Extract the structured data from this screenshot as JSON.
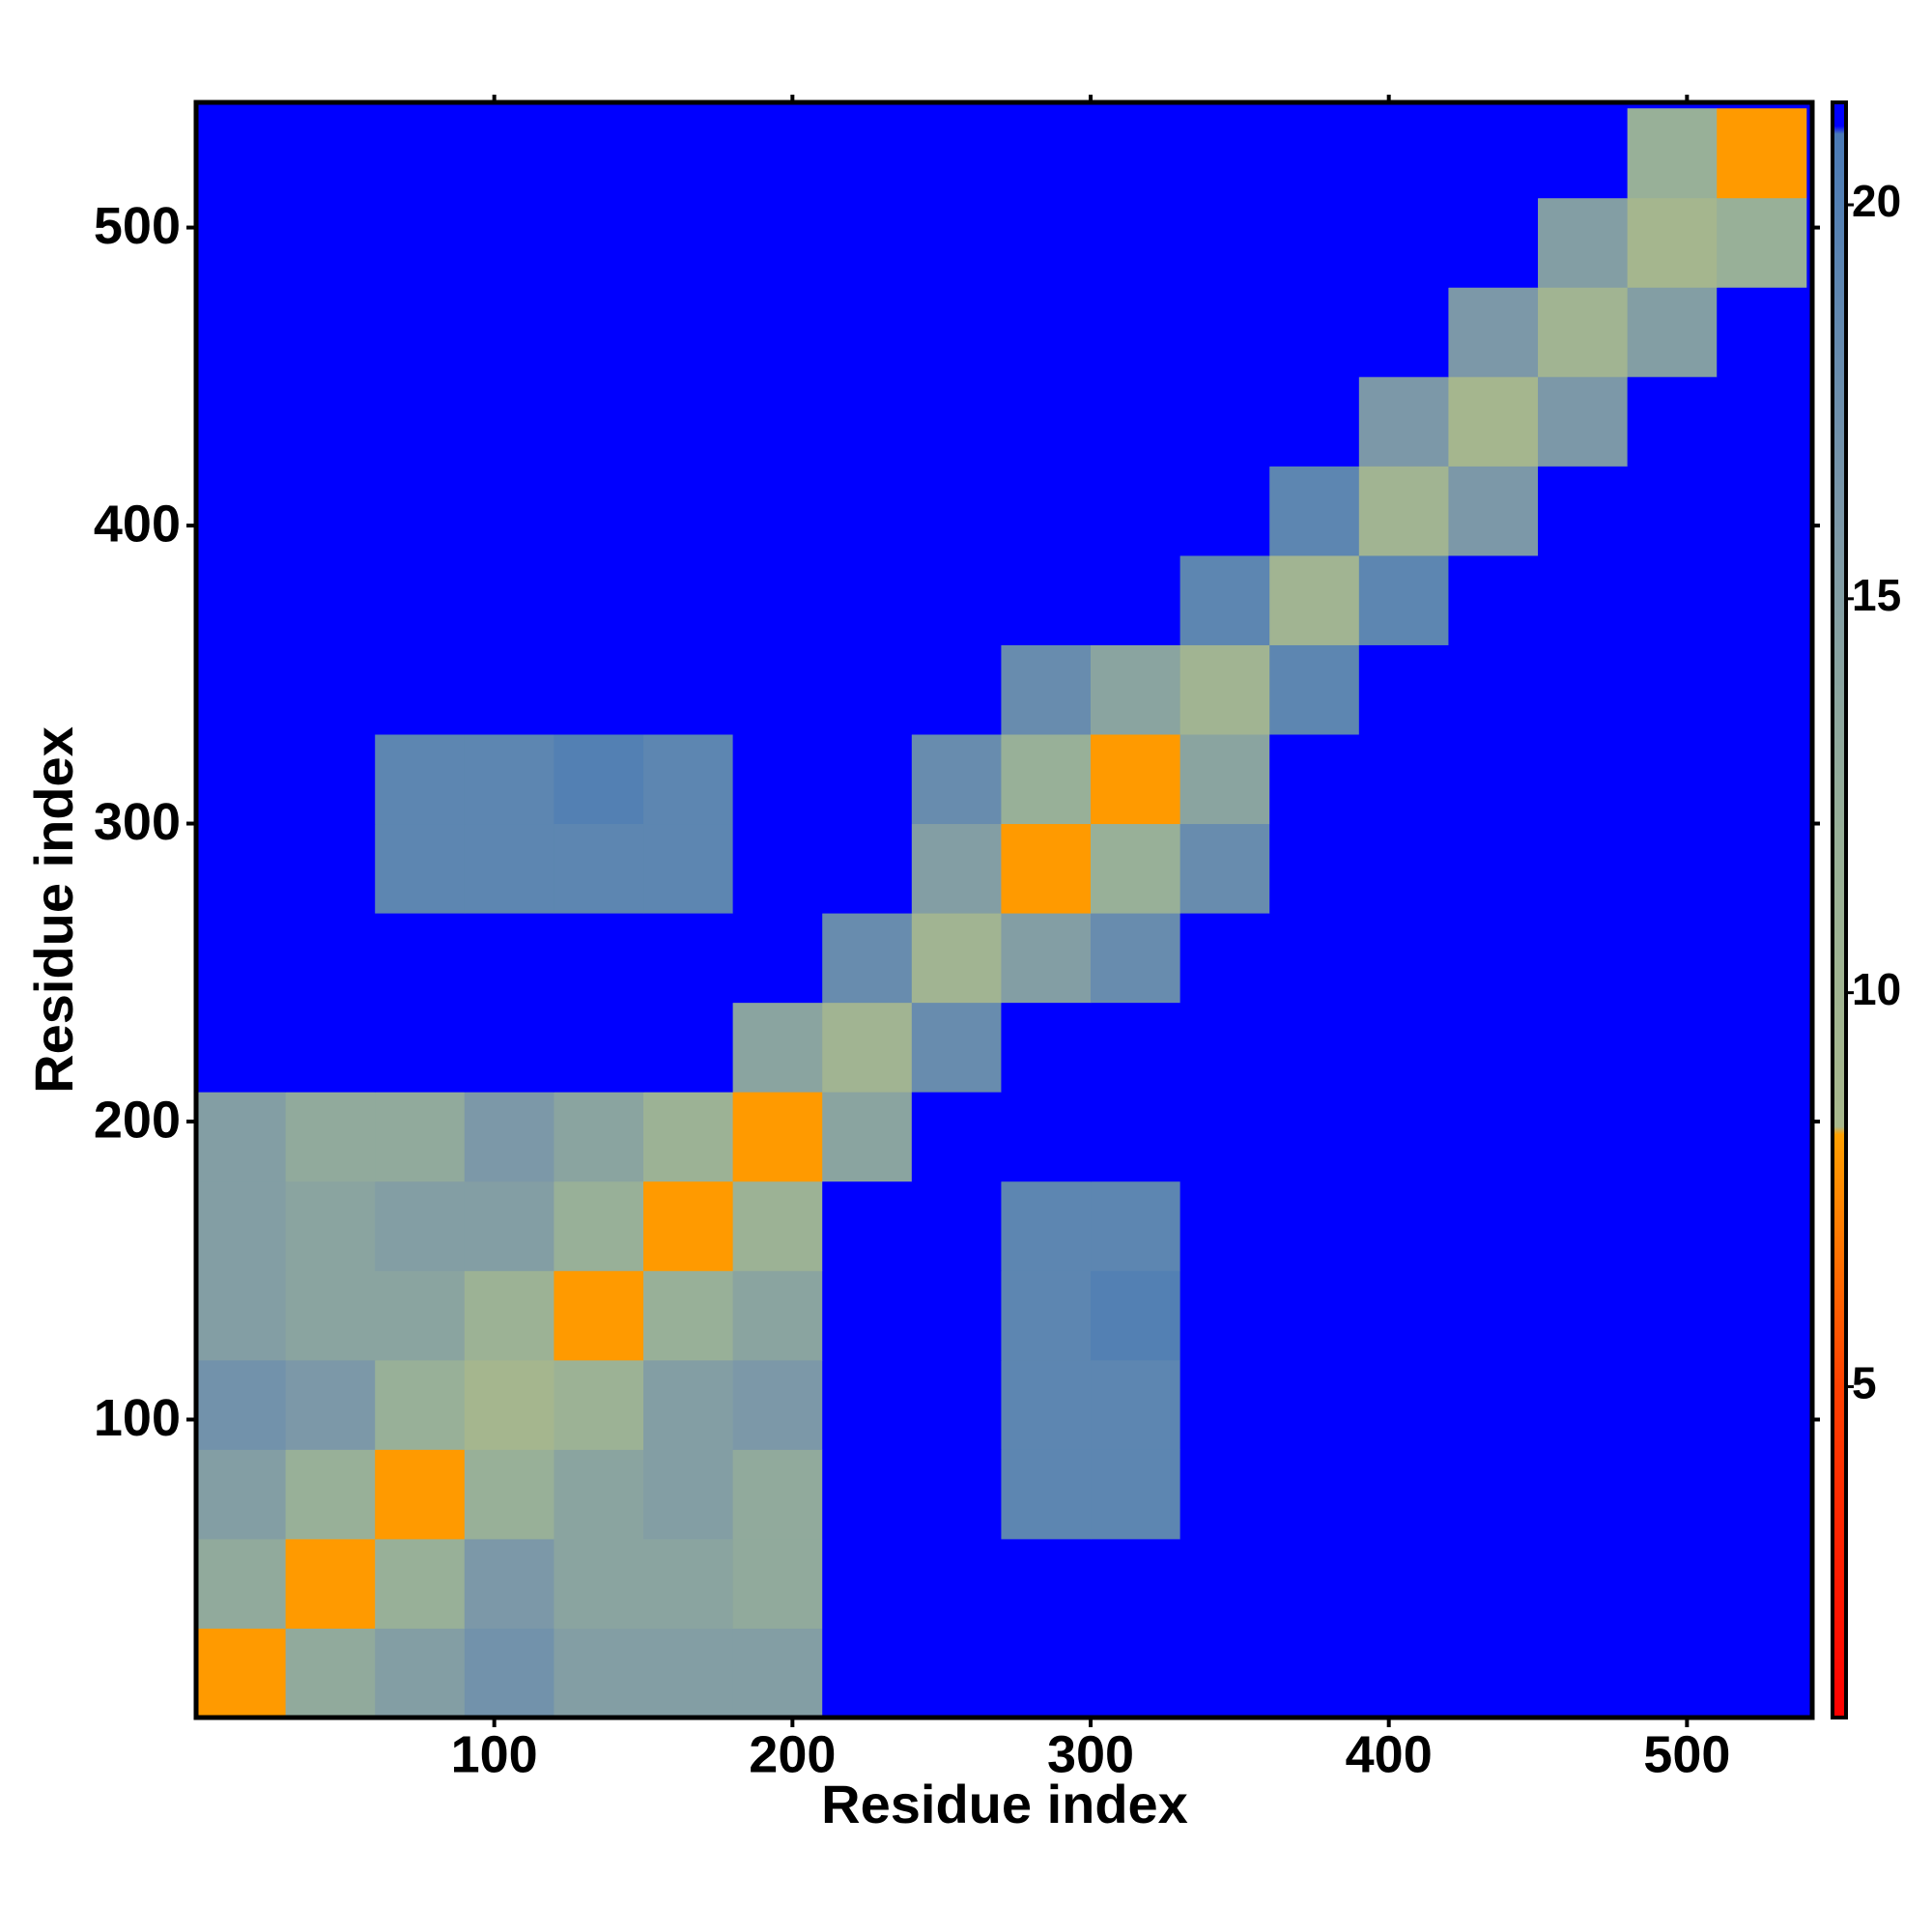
{
  "chart_data": {
    "type": "heatmap",
    "x_label": "Residue index",
    "y_label": "Residue index",
    "xlim": [
      0,
      542
    ],
    "ylim": [
      0,
      542
    ],
    "xticks": [
      100,
      200,
      300,
      400,
      500
    ],
    "yticks": [
      100,
      200,
      300,
      400,
      500
    ],
    "x_bins": [
      0,
      30,
      60,
      90,
      120,
      150,
      180,
      210,
      240,
      270,
      300,
      330,
      360,
      390,
      420,
      450,
      480,
      510,
      540
    ],
    "y_bins": [
      0,
      30,
      60,
      90,
      120,
      150,
      180,
      210,
      240,
      270,
      300,
      330,
      360,
      390,
      420,
      450,
      480,
      510,
      540
    ],
    "values": [
      [
        8,
        13,
        15,
        17,
        15,
        15,
        15,
        21,
        21,
        21,
        21,
        21,
        21,
        21,
        21,
        21,
        21,
        21
      ],
      [
        13,
        8,
        12,
        16,
        14,
        14,
        13,
        21,
        21,
        21,
        21,
        21,
        21,
        21,
        21,
        21,
        21,
        21
      ],
      [
        15,
        12,
        8,
        12,
        14,
        15,
        13,
        21,
        21,
        19,
        19,
        21,
        21,
        21,
        21,
        21,
        21,
        21
      ],
      [
        17,
        16,
        12,
        9,
        11,
        15,
        16,
        21,
        21,
        19,
        19,
        21,
        21,
        21,
        21,
        21,
        21,
        21
      ],
      [
        15,
        14,
        14,
        11,
        8,
        12,
        14,
        21,
        21,
        19,
        20,
        21,
        21,
        21,
        21,
        21,
        21,
        21
      ],
      [
        15,
        14,
        15,
        15,
        12,
        8,
        11,
        21,
        21,
        19,
        19,
        21,
        21,
        21,
        21,
        21,
        21,
        21
      ],
      [
        15,
        13,
        13,
        16,
        14,
        11,
        8,
        14,
        21,
        21,
        21,
        21,
        21,
        21,
        21,
        21,
        21,
        21
      ],
      [
        21,
        21,
        21,
        21,
        21,
        21,
        14,
        10,
        18,
        21,
        21,
        21,
        21,
        21,
        21,
        21,
        21,
        21
      ],
      [
        21,
        21,
        21,
        21,
        21,
        21,
        21,
        18,
        10,
        15,
        18,
        21,
        21,
        21,
        21,
        21,
        21,
        21
      ],
      [
        21,
        21,
        19,
        19,
        19,
        19,
        21,
        21,
        15,
        8,
        12,
        18,
        21,
        21,
        21,
        21,
        21,
        21
      ],
      [
        21,
        21,
        19,
        19,
        20,
        19,
        21,
        21,
        18,
        12,
        8,
        14,
        21,
        21,
        21,
        21,
        21,
        21
      ],
      [
        21,
        21,
        21,
        21,
        21,
        21,
        21,
        21,
        21,
        18,
        14,
        10,
        19,
        21,
        21,
        21,
        21,
        21
      ],
      [
        21,
        21,
        21,
        21,
        21,
        21,
        21,
        21,
        21,
        21,
        21,
        19,
        10,
        19,
        21,
        21,
        21,
        21
      ],
      [
        21,
        21,
        21,
        21,
        21,
        21,
        21,
        21,
        21,
        21,
        21,
        21,
        19,
        10,
        16,
        21,
        21,
        21
      ],
      [
        21,
        21,
        21,
        21,
        21,
        21,
        21,
        21,
        21,
        21,
        21,
        21,
        21,
        16,
        9,
        16,
        21,
        21
      ],
      [
        21,
        21,
        21,
        21,
        21,
        21,
        21,
        21,
        21,
        21,
        21,
        21,
        21,
        21,
        16,
        10,
        15,
        21
      ],
      [
        21,
        21,
        21,
        21,
        21,
        21,
        21,
        21,
        21,
        21,
        21,
        21,
        21,
        21,
        21,
        15,
        9,
        12
      ],
      [
        21,
        21,
        21,
        21,
        21,
        21,
        21,
        21,
        21,
        21,
        21,
        21,
        21,
        21,
        21,
        21,
        12,
        8
      ]
    ],
    "colorbar": {
      "lim": [
        0.8,
        21.3
      ],
      "ticks": [
        5,
        10,
        15,
        20
      ],
      "stops": [
        {
          "value": 0.8,
          "color": "#ff0000"
        },
        {
          "value": 5,
          "color": "#ff4000"
        },
        {
          "value": 8.2,
          "color": "#ffa000"
        },
        {
          "value": 8.3,
          "color": "#a8b88c"
        },
        {
          "value": 12,
          "color": "#98b098"
        },
        {
          "value": 16,
          "color": "#7c98a8"
        },
        {
          "value": 20.9,
          "color": "#4a7ab6"
        },
        {
          "value": 21,
          "color": "#0000ff"
        },
        {
          "value": 21.3,
          "color": "#0000ff"
        }
      ]
    }
  }
}
